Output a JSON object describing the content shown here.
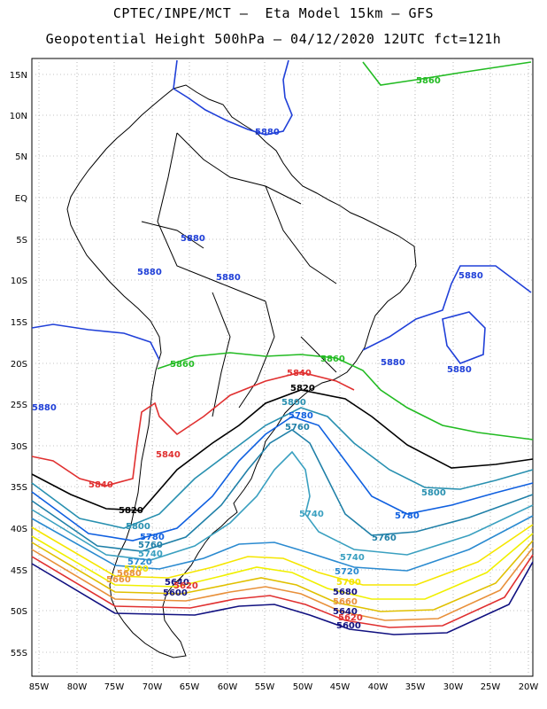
{
  "header": {
    "line1": "CPTEC/INPE/MCT –  Eta Model 15km – GFS",
    "line2": "Geopotential Height 500hPa – 04/12/2020 12UTC fct=121h"
  },
  "axes": {
    "lat_labels": [
      "15N",
      "10N",
      "5N",
      "EQ",
      "5S",
      "10S",
      "15S",
      "20S",
      "25S",
      "30S",
      "35S",
      "40S",
      "45S",
      "50S",
      "55S"
    ],
    "lon_labels": [
      "85W",
      "80W",
      "75W",
      "70W",
      "65W",
      "60W",
      "55W",
      "50W",
      "45W",
      "40W",
      "35W",
      "30W",
      "25W",
      "20W"
    ]
  },
  "colors": {
    "5580": "#1a1a6e",
    "5600": "#101080",
    "5620": "#e03030",
    "5640": "#e8903a",
    "5660": "#e0c000",
    "5680": "#f0f000",
    "5700": "#f5e600",
    "5720": "#2a8ad0",
    "5740": "#3aa0c0",
    "5760": "#2080a8",
    "5780": "#1060e0",
    "5800": "#2890b0",
    "5820": "#000000",
    "5840": "#e03030",
    "5860": "#22bb22",
    "5880": "#2040d8",
    "land": "#000000",
    "grid": "#888888"
  },
  "contour_labels": [
    {
      "text": "5860",
      "color_key": "5860"
    },
    {
      "text": "5880",
      "color_key": "5880"
    },
    {
      "text": "5880",
      "color_key": "5880"
    },
    {
      "text": "5880",
      "color_key": "5880"
    },
    {
      "text": "5880",
      "color_key": "5880"
    },
    {
      "text": "5880",
      "color_key": "5880"
    },
    {
      "text": "5880",
      "color_key": "5880"
    },
    {
      "text": "5880",
      "color_key": "5880"
    },
    {
      "text": "5880",
      "color_key": "5880"
    },
    {
      "text": "5860",
      "color_key": "5860"
    },
    {
      "text": "5860",
      "color_key": "5860"
    },
    {
      "text": "5840",
      "color_key": "5840"
    },
    {
      "text": "5820",
      "color_key": "5820"
    },
    {
      "text": "5800",
      "color_key": "5800"
    },
    {
      "text": "5780",
      "color_key": "5780"
    },
    {
      "text": "5760",
      "color_key": "5760"
    },
    {
      "text": "5840",
      "color_key": "5840"
    },
    {
      "text": "5840",
      "color_key": "5840"
    },
    {
      "text": "5820",
      "color_key": "5820"
    },
    {
      "text": "5800",
      "color_key": "5800"
    },
    {
      "text": "5780",
      "color_key": "5780"
    },
    {
      "text": "5760",
      "color_key": "5760"
    },
    {
      "text": "5740",
      "color_key": "5740"
    },
    {
      "text": "5720",
      "color_key": "5720"
    },
    {
      "text": "5700",
      "color_key": "5700"
    },
    {
      "text": "5680",
      "color_key": "5640"
    },
    {
      "text": "5660",
      "color_key": "5640"
    },
    {
      "text": "5640",
      "color_key": "5600"
    },
    {
      "text": "5620",
      "color_key": "5620"
    },
    {
      "text": "5600",
      "color_key": "5600"
    },
    {
      "text": "5740",
      "color_key": "5740"
    },
    {
      "text": "5800",
      "color_key": "5800"
    },
    {
      "text": "5780",
      "color_key": "5780"
    },
    {
      "text": "5760",
      "color_key": "5760"
    },
    {
      "text": "5740",
      "color_key": "5740"
    },
    {
      "text": "5720",
      "color_key": "5720"
    },
    {
      "text": "5700",
      "color_key": "5700"
    },
    {
      "text": "5680",
      "color_key": "5600"
    },
    {
      "text": "5660",
      "color_key": "5640"
    },
    {
      "text": "5640",
      "color_key": "5600"
    },
    {
      "text": "5620",
      "color_key": "5620"
    },
    {
      "text": "5600",
      "color_key": "5600"
    }
  ]
}
